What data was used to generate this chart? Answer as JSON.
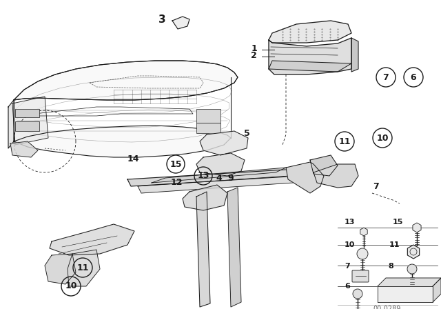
{
  "bg_color": "#ffffff",
  "line_color": "#1a1a1a",
  "watermark": "00-0289",
  "fig_width": 6.4,
  "fig_height": 4.48,
  "dpi": 100
}
